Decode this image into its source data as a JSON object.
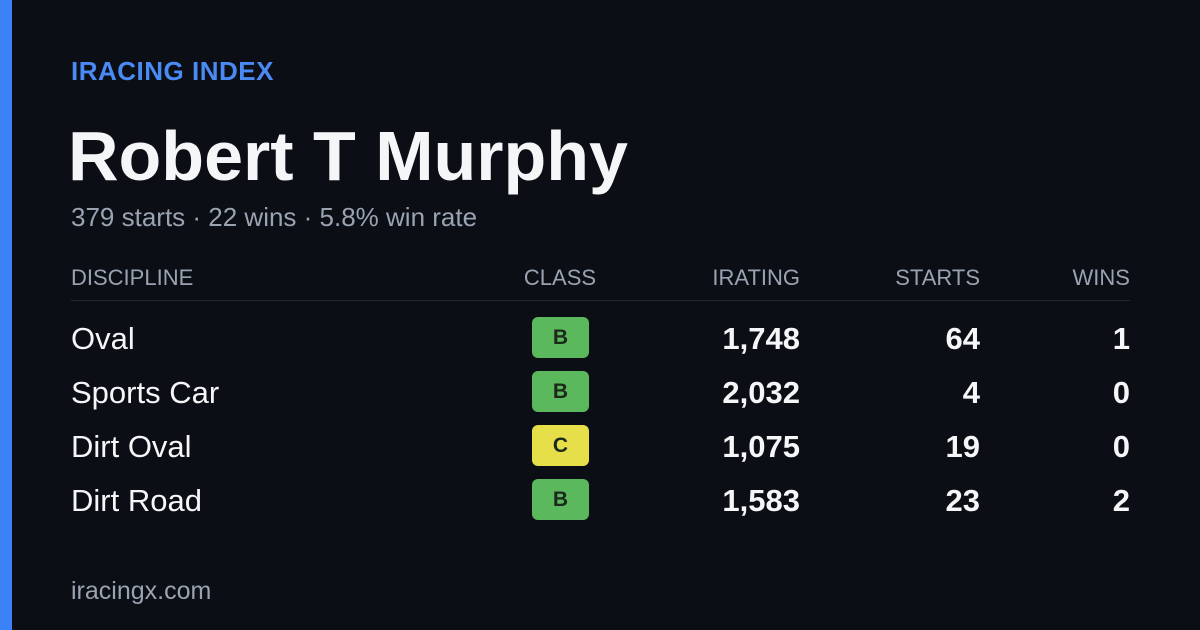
{
  "header": {
    "eyebrow": "IRACING INDEX",
    "name": "Robert T Murphy",
    "stats": "379 starts · 22 wins · 5.8% win rate"
  },
  "table": {
    "columns": [
      "DISCIPLINE",
      "CLASS",
      "IRATING",
      "STARTS",
      "WINS"
    ],
    "rows": [
      [
        "Oval",
        "B",
        "1,748",
        "64",
        "1"
      ],
      [
        "Sports Car",
        "B",
        "2,032",
        "4",
        "0"
      ],
      [
        "Dirt Oval",
        "C",
        "1,075",
        "19",
        "0"
      ],
      [
        "Dirt Road",
        "B",
        "1,583",
        "23",
        "2"
      ]
    ],
    "class_colors": {
      "B": "#5cb85c",
      "C": "#e6df4a"
    }
  },
  "footer": "iracingx.com"
}
